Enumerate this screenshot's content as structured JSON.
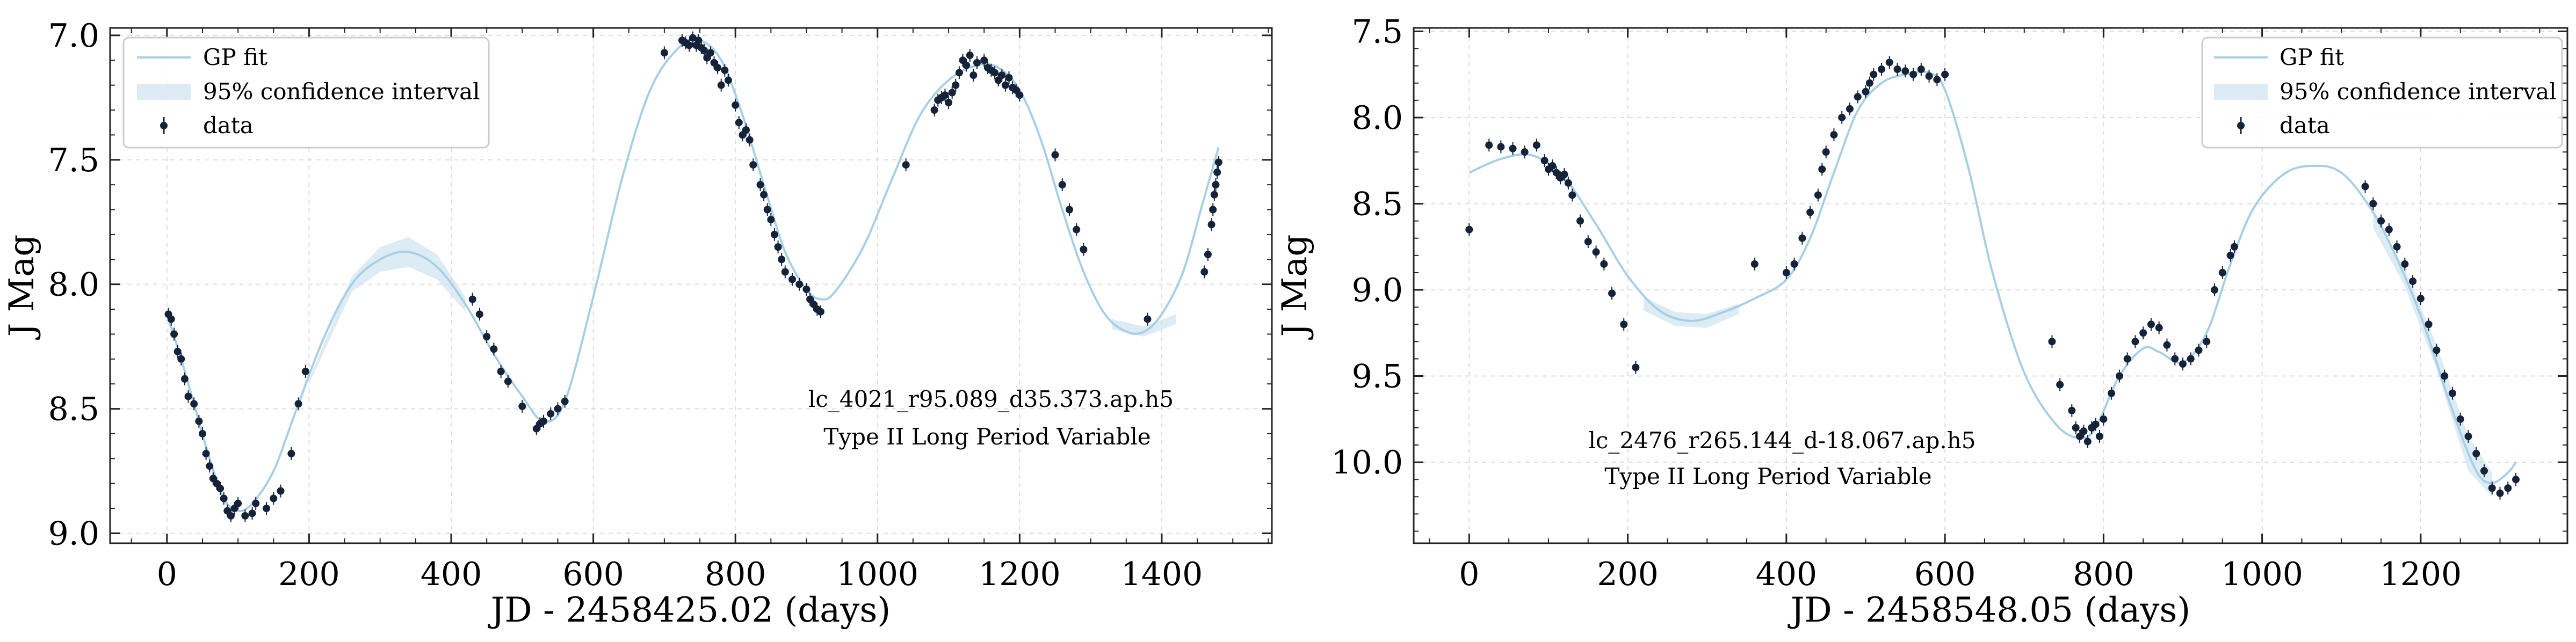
{
  "chart_data": [
    {
      "type": "scatter",
      "title": "",
      "xlabel": "JD - 2458425.02 (days)",
      "ylabel": "J Mag",
      "xlim": [
        -80,
        1555
      ],
      "ylim": [
        9.04,
        6.97
      ],
      "y_inverted": true,
      "xticks": [
        0,
        200,
        400,
        600,
        800,
        1000,
        1200,
        1400
      ],
      "xtick_labels": [
        "0",
        "200",
        "400",
        "600",
        "800",
        "1000",
        "1200",
        "1400"
      ],
      "yticks": [
        7.0,
        7.5,
        8.0,
        8.5,
        9.0
      ],
      "ytick_labels": [
        "7.0",
        "7.5",
        "8.0",
        "8.5",
        "9.0"
      ],
      "grid": true,
      "legend_position": "top-left",
      "legend": [
        "GP fit",
        "95% confidence interval",
        "data"
      ],
      "annotations": [
        "lc_4021_r95.089_d35.373.ap.h5",
        "Type II Long Period Variable"
      ],
      "series": [
        {
          "name": "GP fit",
          "x": [
            0,
            20,
            40,
            60,
            80,
            100,
            120,
            150,
            180,
            220,
            260,
            300,
            340,
            380,
            420,
            460,
            500,
            530,
            560,
            600,
            640,
            680,
            720,
            750,
            780,
            810,
            840,
            870,
            900,
            920,
            940,
            980,
            1020,
            1060,
            1100,
            1140,
            1170,
            1200,
            1230,
            1260,
            1290,
            1320,
            1350,
            1375,
            1400,
            1430,
            1455,
            1480
          ],
          "y": [
            8.12,
            8.3,
            8.5,
            8.7,
            8.86,
            8.91,
            8.88,
            8.75,
            8.52,
            8.22,
            8.0,
            7.9,
            7.87,
            7.93,
            8.08,
            8.28,
            8.45,
            8.55,
            8.47,
            8.05,
            7.58,
            7.22,
            7.05,
            7.02,
            7.1,
            7.32,
            7.6,
            7.87,
            8.02,
            8.06,
            8.03,
            7.85,
            7.58,
            7.32,
            7.18,
            7.12,
            7.13,
            7.22,
            7.42,
            7.7,
            7.95,
            8.12,
            8.19,
            8.19,
            8.12,
            7.95,
            7.7,
            7.45
          ]
        },
        {
          "name": "95% confidence interval",
          "x": [
            200,
            260,
            300,
            340,
            380,
            420,
            1330,
            1375,
            1420
          ],
          "lower": [
            8.38,
            7.97,
            7.85,
            7.81,
            7.88,
            8.05,
            8.14,
            8.17,
            8.12
          ],
          "upper": [
            8.4,
            8.03,
            7.95,
            7.93,
            7.98,
            8.11,
            8.18,
            8.21,
            8.16
          ]
        },
        {
          "name": "data",
          "x": [
            2,
            6,
            10,
            15,
            20,
            25,
            30,
            38,
            45,
            50,
            55,
            60,
            65,
            70,
            75,
            80,
            85,
            90,
            95,
            100,
            110,
            120,
            125,
            140,
            150,
            160,
            175,
            185,
            195,
            430,
            440,
            450,
            460,
            470,
            480,
            500,
            520,
            525,
            530,
            540,
            550,
            560,
            700,
            725,
            730,
            735,
            740,
            745,
            748,
            752,
            756,
            760,
            765,
            770,
            775,
            780,
            785,
            790,
            800,
            805,
            810,
            815,
            820,
            825,
            835,
            840,
            845,
            850,
            855,
            860,
            865,
            870,
            880,
            890,
            900,
            905,
            910,
            915,
            920,
            1040,
            1080,
            1085,
            1090,
            1095,
            1100,
            1105,
            1110,
            1115,
            1120,
            1125,
            1130,
            1135,
            1140,
            1150,
            1155,
            1160,
            1165,
            1170,
            1175,
            1180,
            1185,
            1190,
            1195,
            1200,
            1250,
            1260,
            1270,
            1280,
            1290,
            1380,
            1460,
            1465,
            1470,
            1472,
            1474,
            1476,
            1478,
            1480
          ],
          "y": [
            8.12,
            8.14,
            8.2,
            8.27,
            8.3,
            8.38,
            8.45,
            8.48,
            8.55,
            8.6,
            8.68,
            8.73,
            8.78,
            8.8,
            8.82,
            8.86,
            8.91,
            8.93,
            8.9,
            8.88,
            8.93,
            8.92,
            8.88,
            8.9,
            8.86,
            8.83,
            8.68,
            8.48,
            8.35,
            8.06,
            8.12,
            8.21,
            8.26,
            8.35,
            8.39,
            8.49,
            8.58,
            8.56,
            8.55,
            8.52,
            8.5,
            8.47,
            7.07,
            7.02,
            7.03,
            7.04,
            7.01,
            7.04,
            7.02,
            7.05,
            7.06,
            7.09,
            7.07,
            7.11,
            7.13,
            7.2,
            7.14,
            7.18,
            7.28,
            7.35,
            7.4,
            7.38,
            7.42,
            7.52,
            7.6,
            7.64,
            7.7,
            7.74,
            7.8,
            7.85,
            7.9,
            7.95,
            7.98,
            8.0,
            8.02,
            8.06,
            8.08,
            8.1,
            8.11,
            7.52,
            7.3,
            7.26,
            7.25,
            7.24,
            7.27,
            7.23,
            7.2,
            7.15,
            7.1,
            7.12,
            7.08,
            7.16,
            7.11,
            7.1,
            7.13,
            7.14,
            7.15,
            7.18,
            7.16,
            7.2,
            7.17,
            7.21,
            7.22,
            7.24,
            7.48,
            7.6,
            7.7,
            7.78,
            7.86,
            8.14,
            7.95,
            7.88,
            7.76,
            7.7,
            7.64,
            7.6,
            7.55,
            7.51
          ]
        }
      ]
    },
    {
      "type": "scatter",
      "title": "",
      "xlabel": "JD - 2458548.05 (days)",
      "ylabel": "J Mag",
      "xlim": [
        -70,
        1385
      ],
      "ylim": [
        10.47,
        7.48
      ],
      "y_inverted": true,
      "xticks": [
        0,
        200,
        400,
        600,
        800,
        1000,
        1200
      ],
      "xtick_labels": [
        "0",
        "200",
        "400",
        "600",
        "800",
        "1000",
        "1200"
      ],
      "yticks": [
        7.5,
        8.0,
        8.5,
        9.0,
        9.5,
        10.0
      ],
      "ytick_labels": [
        "7.5",
        "8.0",
        "8.5",
        "9.0",
        "9.5",
        "10.0"
      ],
      "grid": true,
      "legend_position": "top-right",
      "legend": [
        "GP fit",
        "95% confidence interval",
        "data"
      ],
      "annotations": [
        "lc_2476_r265.144_d-18.067.ap.h5",
        "Type II Long Period Variable"
      ],
      "series": [
        {
          "name": "GP fit",
          "x": [
            0,
            40,
            80,
            120,
            160,
            200,
            240,
            280,
            320,
            360,
            400,
            430,
            460,
            490,
            520,
            550,
            580,
            600,
            630,
            660,
            700,
            740,
            770,
            790,
            820,
            850,
            870,
            900,
            930,
            960,
            990,
            1030,
            1070,
            1100,
            1130,
            1160,
            1200,
            1240,
            1270,
            1290,
            1310,
            1320
          ],
          "y": [
            8.32,
            8.24,
            8.22,
            8.35,
            8.62,
            8.92,
            9.12,
            9.18,
            9.13,
            9.05,
            8.94,
            8.7,
            8.32,
            7.96,
            7.8,
            7.75,
            7.74,
            7.84,
            8.3,
            8.9,
            9.48,
            9.78,
            9.86,
            9.8,
            9.5,
            9.34,
            9.36,
            9.42,
            9.25,
            8.85,
            8.52,
            8.32,
            8.28,
            8.32,
            8.48,
            8.72,
            9.15,
            9.7,
            10.05,
            10.12,
            10.06,
            10.0
          ]
        },
        {
          "name": "95% confidence interval",
          "x": [
            220,
            260,
            300,
            340,
            1140,
            1180,
            1220,
            1260,
            1290
          ],
          "lower": [
            9.04,
            9.13,
            9.14,
            9.08,
            8.56,
            8.88,
            9.32,
            9.85,
            10.06
          ],
          "upper": [
            9.12,
            9.21,
            9.22,
            9.14,
            8.64,
            8.98,
            9.46,
            10.05,
            10.2
          ]
        },
        {
          "name": "data",
          "x": [
            0,
            25,
            40,
            55,
            70,
            85,
            95,
            100,
            105,
            110,
            115,
            120,
            125,
            130,
            140,
            150,
            160,
            170,
            180,
            195,
            210,
            360,
            400,
            410,
            420,
            430,
            440,
            445,
            450,
            460,
            470,
            480,
            490,
            500,
            505,
            510,
            520,
            530,
            540,
            550,
            560,
            570,
            580,
            590,
            600,
            735,
            745,
            760,
            765,
            770,
            775,
            780,
            785,
            790,
            795,
            800,
            810,
            820,
            830,
            840,
            850,
            860,
            870,
            880,
            890,
            900,
            910,
            920,
            930,
            940,
            950,
            960,
            965,
            1130,
            1140,
            1150,
            1160,
            1170,
            1180,
            1190,
            1200,
            1210,
            1220,
            1230,
            1240,
            1250,
            1260,
            1270,
            1280,
            1290,
            1300,
            1310,
            1320
          ],
          "y": [
            8.65,
            8.16,
            8.17,
            8.18,
            8.2,
            8.16,
            8.25,
            8.3,
            8.28,
            8.32,
            8.35,
            8.33,
            8.38,
            8.45,
            8.6,
            8.72,
            8.78,
            8.85,
            9.02,
            9.2,
            9.45,
            8.85,
            8.9,
            8.85,
            8.7,
            8.55,
            8.45,
            8.3,
            8.2,
            8.1,
            8.0,
            7.95,
            7.88,
            7.85,
            7.8,
            7.75,
            7.72,
            7.68,
            7.72,
            7.73,
            7.75,
            7.72,
            7.76,
            7.78,
            7.75,
            9.3,
            9.55,
            9.7,
            9.8,
            9.85,
            9.82,
            9.88,
            9.8,
            9.78,
            9.85,
            9.75,
            9.6,
            9.5,
            9.4,
            9.3,
            9.25,
            9.2,
            9.22,
            9.32,
            9.4,
            9.43,
            9.4,
            9.35,
            9.3,
            9.0,
            8.9,
            8.8,
            8.75,
            8.4,
            8.5,
            8.6,
            8.65,
            8.75,
            8.85,
            8.95,
            9.05,
            9.2,
            9.35,
            9.5,
            9.6,
            9.75,
            9.85,
            9.95,
            10.05,
            10.15,
            10.18,
            10.15,
            10.1
          ]
        }
      ]
    }
  ]
}
